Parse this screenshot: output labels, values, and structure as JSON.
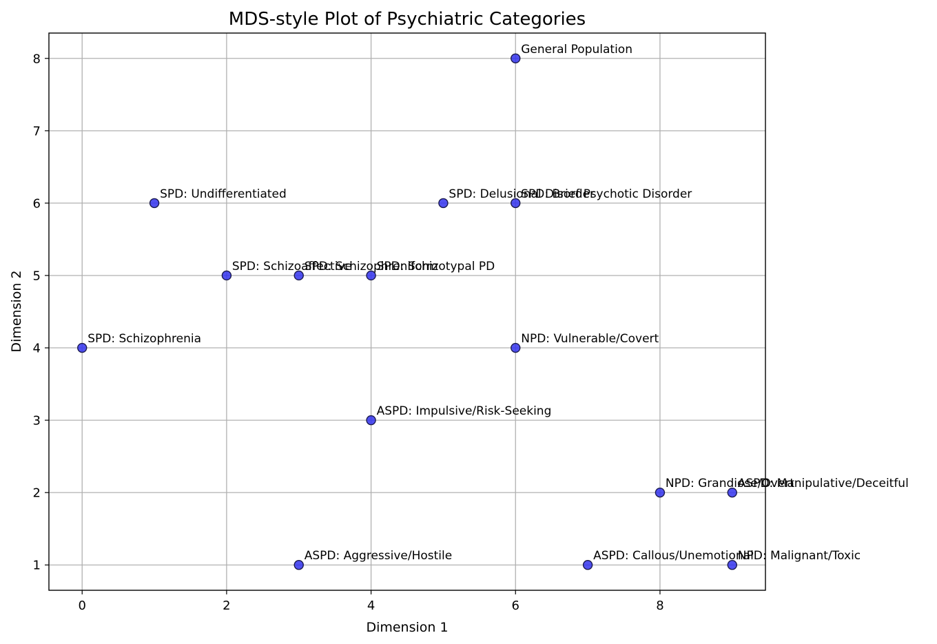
{
  "chart_data": {
    "type": "scatter",
    "title": "MDS-style Plot of Psychiatric Categories",
    "xlabel": "Dimension 1",
    "ylabel": "Dimension 2",
    "xlim": [
      -0.46,
      9.46
    ],
    "ylim": [
      0.65,
      8.35
    ],
    "xticks": [
      0,
      2,
      4,
      6,
      8
    ],
    "yticks": [
      1,
      2,
      3,
      4,
      5,
      6,
      7,
      8
    ],
    "grid": true,
    "marker_color": "#3333ee",
    "marker_edge_color": "#1a1a4d",
    "points": [
      {
        "x": 6,
        "y": 8,
        "label": "General Population"
      },
      {
        "x": 1,
        "y": 6,
        "label": "SPD: Undifferentiated"
      },
      {
        "x": 5,
        "y": 6,
        "label": "SPD: Delusional Disorder"
      },
      {
        "x": 6,
        "y": 6,
        "label": "SPD: Brief Psychotic Disorder"
      },
      {
        "x": 2,
        "y": 5,
        "label": "SPD: Schizoaffective"
      },
      {
        "x": 3,
        "y": 5,
        "label": "SPD: Schizophreniform"
      },
      {
        "x": 4,
        "y": 5,
        "label": "SPD: Schizotypal PD"
      },
      {
        "x": 0,
        "y": 4,
        "label": "SPD: Schizophrenia"
      },
      {
        "x": 6,
        "y": 4,
        "label": "NPD: Vulnerable/Covert"
      },
      {
        "x": 4,
        "y": 3,
        "label": "ASPD: Impulsive/Risk-Seeking"
      },
      {
        "x": 8,
        "y": 2,
        "label": "NPD: Grandiose/Overt"
      },
      {
        "x": 9,
        "y": 2,
        "label": "ASPD: Manipulative/Deceitful"
      },
      {
        "x": 3,
        "y": 1,
        "label": "ASPD: Aggressive/Hostile"
      },
      {
        "x": 7,
        "y": 1,
        "label": "ASPD: Callous/Unemotional"
      },
      {
        "x": 9,
        "y": 1,
        "label": "NPD: Malignant/Toxic"
      }
    ]
  }
}
